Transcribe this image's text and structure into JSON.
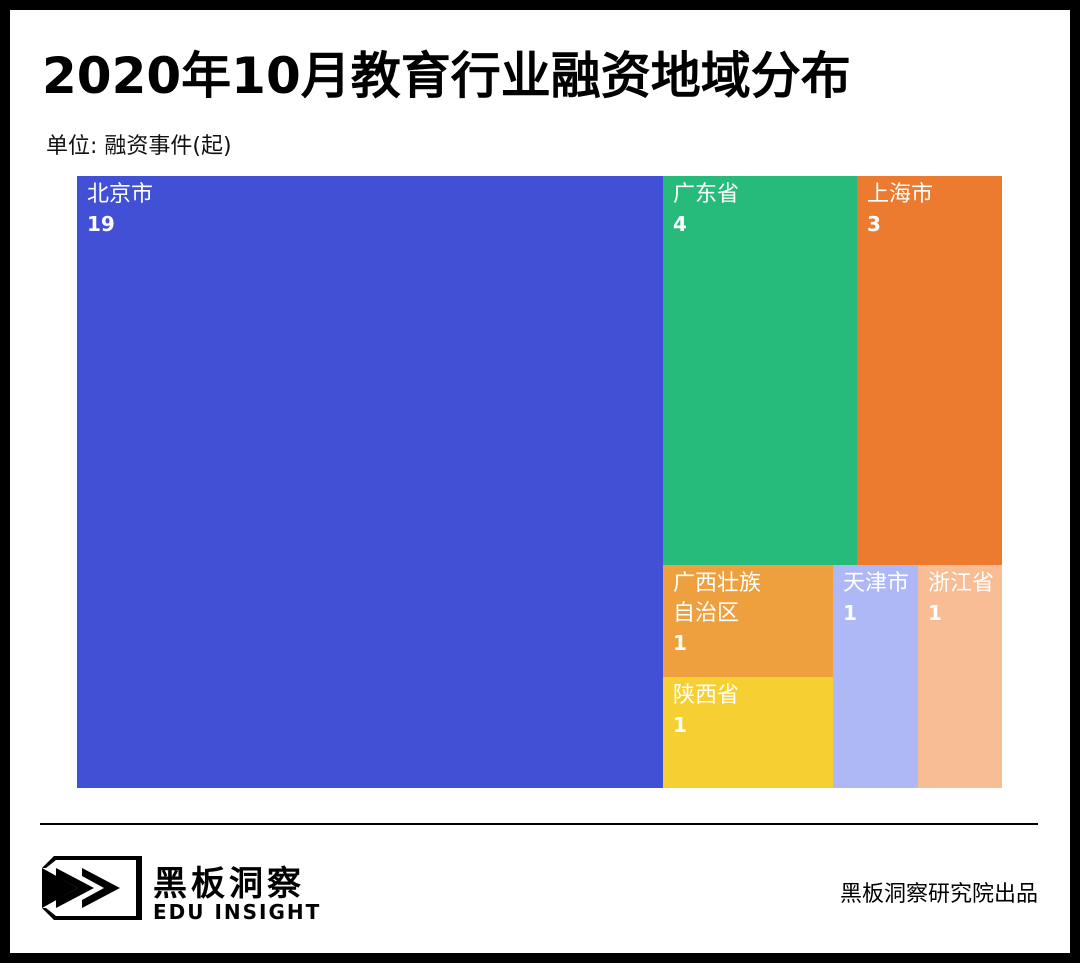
{
  "header": {
    "title": "2020年10月教育行业融资地域分布",
    "unit": "单位: 融资事件(起)"
  },
  "chart_data": {
    "type": "treemap",
    "title": "2020年10月教育行业融资地域分布",
    "unit_label": "单位: 融资事件(起)",
    "items": [
      {
        "label": "北京市",
        "value": 19,
        "color": "#4150d5"
      },
      {
        "label": "广东省",
        "value": 4,
        "color": "#26bb7b"
      },
      {
        "label": "上海市",
        "value": 3,
        "color": "#ec7a2f"
      },
      {
        "label": "广西壮族\n自治区",
        "value": 1,
        "color": "#eda03d"
      },
      {
        "label": "陕西省",
        "value": 1,
        "color": "#f6d032"
      },
      {
        "label": "天津市",
        "value": 1,
        "color": "#aeb8f7"
      },
      {
        "label": "浙江省",
        "value": 1,
        "color": "#f8bd94"
      }
    ]
  },
  "footer": {
    "brand_cn": "黑板洞察",
    "brand_en": "EDU INSIGHT",
    "credit": "黑板洞察研究院出品"
  }
}
